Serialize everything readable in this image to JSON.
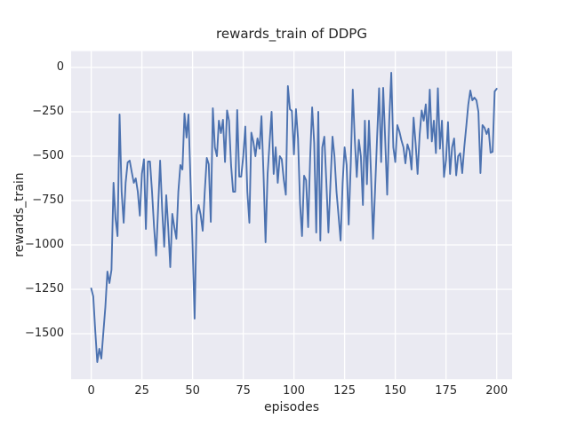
{
  "colors": {
    "figure_bg": "#ffffff",
    "axes_bg": "#eaeaf2",
    "grid": "#ffffff",
    "line": "#4c72b0",
    "text": "#262626"
  },
  "chart_data": {
    "type": "line",
    "title": "rewards_train of DDPG",
    "xlabel": "episodes",
    "ylabel": "rewards_train",
    "x_ticks": [
      0,
      25,
      50,
      75,
      100,
      125,
      150,
      175,
      200
    ],
    "x_tick_labels": [
      "0",
      "25",
      "50",
      "75",
      "100",
      "125",
      "150",
      "175",
      "200"
    ],
    "y_ticks": [
      0,
      -250,
      -500,
      -750,
      -1000,
      -1250,
      -1500
    ],
    "y_tick_labels": [
      "0",
      "−250",
      "−500",
      "−750",
      "−1000",
      "−1250",
      "−1500"
    ],
    "xlim": [
      -9.9,
      207.6
    ],
    "ylim": [
      -1756,
      92
    ],
    "grid": true,
    "legend": "none",
    "series": [
      {
        "name": "rewards_train",
        "x_start": 0,
        "x_step": 1,
        "values": [
          -1245,
          -1290,
          -1480,
          -1660,
          -1585,
          -1640,
          -1490,
          -1350,
          -1150,
          -1215,
          -1140,
          -650,
          -850,
          -950,
          -265,
          -700,
          -875,
          -650,
          -535,
          -525,
          -590,
          -650,
          -625,
          -700,
          -835,
          -600,
          -517,
          -910,
          -530,
          -530,
          -700,
          -900,
          -1060,
          -800,
          -525,
          -800,
          -1010,
          -720,
          -900,
          -1125,
          -825,
          -900,
          -965,
          -700,
          -550,
          -575,
          -260,
          -395,
          -265,
          -640,
          -1000,
          -1415,
          -830,
          -775,
          -830,
          -920,
          -700,
          -510,
          -545,
          -870,
          -230,
          -450,
          -500,
          -300,
          -370,
          -295,
          -533,
          -242,
          -300,
          -550,
          -700,
          -700,
          -240,
          -615,
          -615,
          -500,
          -333,
          -700,
          -875,
          -367,
          -420,
          -500,
          -400,
          -458,
          -275,
          -600,
          -985,
          -600,
          -417,
          -250,
          -600,
          -450,
          -650,
          -500,
          -517,
          -633,
          -717,
          -105,
          -235,
          -245,
          -490,
          -235,
          -400,
          -767,
          -950,
          -610,
          -635,
          -900,
          -500,
          -225,
          -425,
          -930,
          -250,
          -975,
          -450,
          -390,
          -650,
          -930,
          -650,
          -390,
          -500,
          -700,
          -835,
          -975,
          -650,
          -450,
          -550,
          -885,
          -550,
          -125,
          -400,
          -617,
          -408,
          -500,
          -775,
          -300,
          -658,
          -300,
          -600,
          -965,
          -700,
          -400,
          -117,
          -533,
          -115,
          -400,
          -717,
          -300,
          -30,
          -450,
          -533,
          -325,
          -360,
          -410,
          -450,
          -540,
          -433,
          -470,
          -575,
          -283,
          -430,
          -600,
          -380,
          -242,
          -300,
          -208,
          -400,
          -125,
          -417,
          -300,
          -483,
          -117,
          -458,
          -300,
          -617,
          -520,
          -308,
          -600,
          -450,
          -400,
          -608,
          -500,
          -483,
          -595,
          -450,
          -330,
          -210,
          -130,
          -185,
          -170,
          -185,
          -250,
          -595,
          -325,
          -340,
          -375,
          -345,
          -480,
          -475,
          -135,
          -120
        ]
      }
    ]
  }
}
